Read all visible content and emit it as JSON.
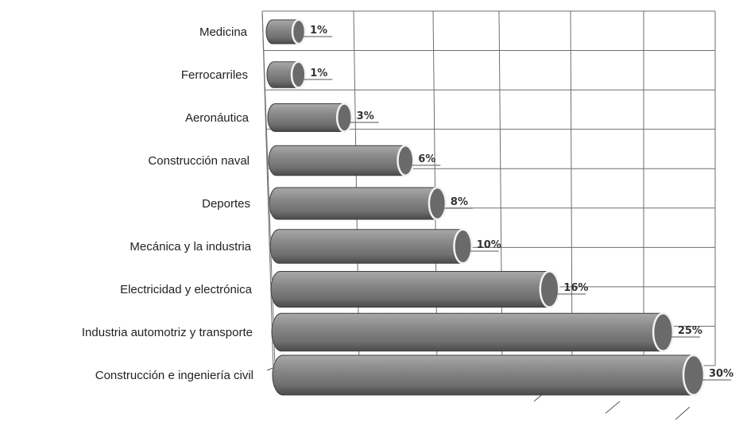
{
  "chart_data": {
    "type": "bar",
    "orientation": "horizontal",
    "style": "3d-cylinder",
    "title": "",
    "xlabel": "",
    "ylabel": "",
    "xlim": [
      0,
      30
    ],
    "grid": true,
    "legend": "none",
    "categories": [
      "Medicina",
      "Ferrocarriles",
      "Aeronáutica",
      "Construcción naval",
      "Deportes",
      "Mecánica y la industria",
      "Electricidad y electrónica",
      "Industria automotriz y transporte",
      "Construcción e ingeniería civil"
    ],
    "values": [
      1,
      1,
      3,
      6,
      8,
      10,
      16,
      25,
      30
    ],
    "value_labels": [
      "1%",
      "1%",
      "3%",
      "6%",
      "8%",
      "10%",
      "16%",
      "25%",
      "30%"
    ],
    "colors": {
      "bar": "#808080",
      "bar_dark": "#4a4a4a",
      "bar_light": "#a9a9a9",
      "end_cap": "#6a6a6a",
      "grid": "#6e6e6e"
    }
  }
}
